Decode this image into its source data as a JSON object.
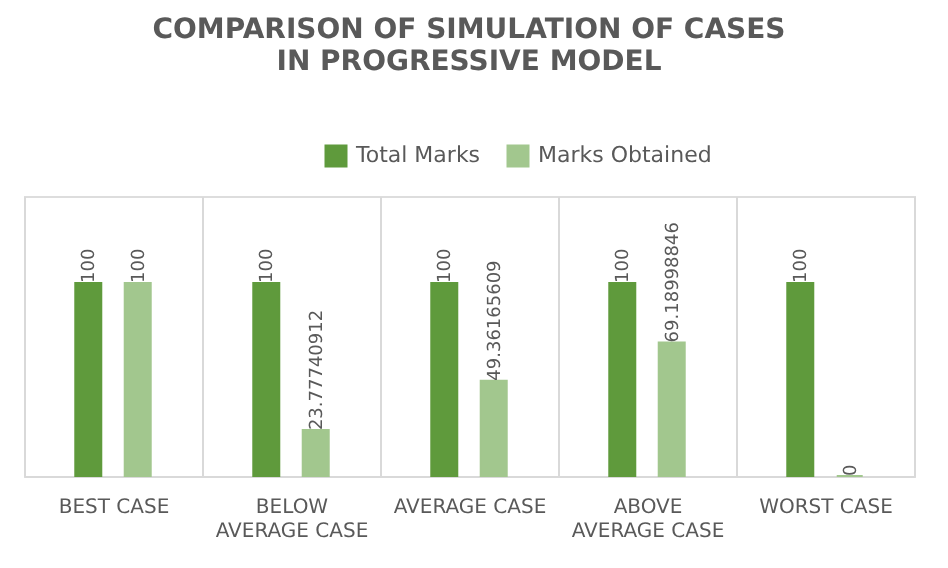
{
  "chart_data": {
    "type": "bar",
    "title": "COMPARISON OF SIMULATION OF CASES IN PROGRESSIVE MODEL",
    "categories": [
      "BEST CASE",
      "BELOW AVERAGE CASE",
      "AVERAGE CASE",
      "ABOVE AVERAGE CASE",
      "WORST CASE"
    ],
    "series": [
      {
        "name": "Total Marks",
        "color": "#5f9a3c",
        "values": [
          100,
          100,
          100,
          100,
          100
        ]
      },
      {
        "name": "Marks Obtained",
        "color": "#a2c78e",
        "values": [
          100,
          23.77740912,
          49.36165609,
          69.18998846,
          0
        ]
      }
    ],
    "data_labels": true,
    "grid": "x",
    "legend": "top"
  }
}
